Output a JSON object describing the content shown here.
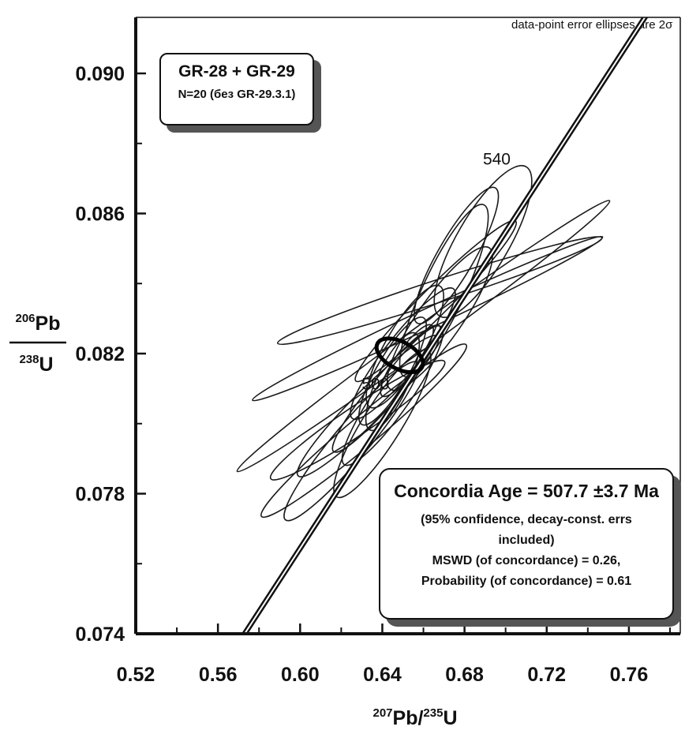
{
  "chart_data": {
    "type": "scatter",
    "subtype": "concordia-error-ellipses",
    "note": "data-point error ellipses are 2σ",
    "xlabel": {
      "sup1": "207",
      "main1": "Pb/",
      "sup2": "235",
      "main2": "U"
    },
    "ylabel": {
      "num_sup": "206",
      "num": "Pb",
      "den_sup": "238",
      "den": "U"
    },
    "xlim": [
      0.52,
      0.785
    ],
    "ylim": [
      0.074,
      0.0916
    ],
    "x_ticks": [
      "0.52",
      "0.56",
      "0.60",
      "0.64",
      "0.68",
      "0.72",
      "0.76"
    ],
    "y_ticks": [
      "0.074",
      "0.078",
      "0.082",
      "0.086",
      "0.090"
    ],
    "grid": false,
    "concordia_age_labels": [
      {
        "label": "500",
        "x": 0.6367,
        "y": 0.08097
      },
      {
        "label": "540",
        "x": 0.6957,
        "y": 0.0874
      }
    ],
    "concordia_age_ellipse": {
      "cx": 0.6485,
      "cy": 0.08195,
      "rx": 0.0066,
      "ry": 0.00072,
      "angle_deg": 62
    },
    "ellipses": [
      {
        "cx": 0.689,
        "cy": 0.0852,
        "rx": 0.042,
        "ry": 0.00075,
        "angle_deg": 60
      },
      {
        "cx": 0.668,
        "cy": 0.083,
        "rx": 0.042,
        "ry": 0.00062,
        "angle_deg": 55
      },
      {
        "cx": 0.676,
        "cy": 0.0848,
        "rx": 0.038,
        "ry": 0.00052,
        "angle_deg": 60
      },
      {
        "cx": 0.66,
        "cy": 0.0825,
        "rx": 0.112,
        "ry": 0.00032,
        "angle_deg": 36
      },
      {
        "cx": 0.662,
        "cy": 0.083,
        "rx": 0.094,
        "ry": 0.00028,
        "angle_deg": 25
      },
      {
        "cx": 0.668,
        "cy": 0.0838,
        "rx": 0.083,
        "ry": 0.00032,
        "angle_deg": 18
      },
      {
        "cx": 0.666,
        "cy": 0.0835,
        "rx": 0.055,
        "ry": 0.0004,
        "angle_deg": 45
      },
      {
        "cx": 0.651,
        "cy": 0.0822,
        "rx": 0.034,
        "ry": 0.00055,
        "angle_deg": 60
      },
      {
        "cx": 0.645,
        "cy": 0.0815,
        "rx": 0.03,
        "ry": 0.00045,
        "angle_deg": 60
      },
      {
        "cx": 0.642,
        "cy": 0.081,
        "rx": 0.04,
        "ry": 0.0004,
        "angle_deg": 50
      },
      {
        "cx": 0.631,
        "cy": 0.0798,
        "rx": 0.065,
        "ry": 0.00042,
        "angle_deg": 40
      },
      {
        "cx": 0.628,
        "cy": 0.0801,
        "rx": 0.051,
        "ry": 0.0004,
        "angle_deg": 34
      },
      {
        "cx": 0.633,
        "cy": 0.0805,
        "rx": 0.048,
        "ry": 0.00045,
        "angle_deg": 45
      },
      {
        "cx": 0.64,
        "cy": 0.08,
        "rx": 0.042,
        "ry": 0.00055,
        "angle_deg": 58
      },
      {
        "cx": 0.625,
        "cy": 0.0795,
        "rx": 0.05,
        "ry": 0.0005,
        "angle_deg": 50
      },
      {
        "cx": 0.645,
        "cy": 0.0808,
        "rx": 0.041,
        "ry": 0.0005,
        "angle_deg": 55
      },
      {
        "cx": 0.65,
        "cy": 0.082,
        "rx": 0.04,
        "ry": 0.0005,
        "angle_deg": 52
      },
      {
        "cx": 0.652,
        "cy": 0.0818,
        "rx": 0.021,
        "ry": 0.00032,
        "angle_deg": 55
      },
      {
        "cx": 0.645,
        "cy": 0.0812,
        "rx": 0.026,
        "ry": 0.00045,
        "angle_deg": 65
      },
      {
        "cx": 0.67,
        "cy": 0.0838,
        "rx": 0.046,
        "ry": 0.0006,
        "angle_deg": 65
      }
    ],
    "concordia_line": {
      "x": [
        0.572,
        0.77
      ],
      "y": [
        0.074,
        0.0918
      ]
    }
  },
  "sample_box": {
    "title": "GR-28 + GR-29",
    "subtitle": "N=20 (без GR-29.3.1)"
  },
  "result_box": {
    "title": "Concordia Age = 507.7 ±3.7 Ma",
    "line2": "(95% confidence, decay-const. errs included)",
    "line3": "MSWD (of concordance) = 0.26,",
    "line4": "Probability (of concordance) = 0.61"
  }
}
